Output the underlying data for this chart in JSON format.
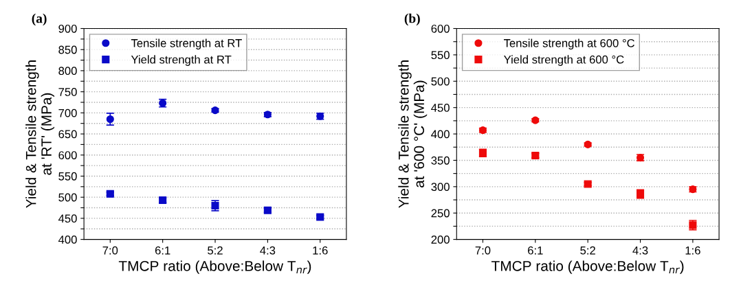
{
  "chart_data": [
    {
      "type": "scatter",
      "title": "(a)",
      "xlabel": "TMCP ratio (Above:Below T$_{nr}$)",
      "ylabel": "Yield & Tensile strength\nat 'RT' (MPa)",
      "categories": [
        "7:0",
        "6:1",
        "5:2",
        "4:3",
        "1:6"
      ],
      "series": [
        {
          "name": "Tensile strength at RT",
          "color": "#0a0ac8",
          "marker": "circle",
          "values": [
            685,
            723,
            706,
            696,
            692
          ],
          "errors": [
            14,
            9,
            4,
            5,
            7
          ]
        },
        {
          "name": "Yield strength at RT",
          "color": "#0a0ac8",
          "marker": "square",
          "values": [
            508,
            493,
            480,
            469,
            453
          ],
          "errors": [
            4,
            6,
            12,
            5,
            4
          ]
        }
      ],
      "ylim": [
        400,
        900
      ],
      "yticks": [
        400,
        {
          "value": 425,
          "label": null
        },
        450,
        {
          "value": 475,
          "label": null
        },
        500,
        {
          "value": 525,
          "label": null
        },
        550,
        {
          "value": 575,
          "label": null
        },
        600,
        {
          "value": 625,
          "label": null
        },
        650,
        {
          "value": 675,
          "label": null
        },
        700,
        {
          "value": 725,
          "label": null
        },
        750,
        {
          "value": 775,
          "label": null
        },
        800,
        {
          "value": 825,
          "label": null
        },
        850,
        {
          "value": 875,
          "label": null
        },
        900
      ],
      "grid": "y",
      "legend": "top left"
    },
    {
      "type": "scatter",
      "title": "(b)",
      "xlabel": "TMCP ratio (Above:Below T$_{nr}$)",
      "ylabel": "Yield & Tensile strength\nat '600 °C' (MPa)",
      "categories": [
        "7:0",
        "6:1",
        "5:2",
        "4:3",
        "1:6"
      ],
      "series": [
        {
          "name": "Tensile strength at 600 °C",
          "color": "#ee0a0a",
          "marker": "circle",
          "values": [
            407,
            426,
            380,
            355,
            295
          ],
          "errors": [
            4,
            3,
            3,
            6,
            5
          ]
        },
        {
          "name": "Yield strength at 600 °C",
          "color": "#ee0a0a",
          "marker": "square",
          "values": [
            364,
            359,
            305,
            286,
            227
          ],
          "errors": [
            7,
            4,
            3,
            8,
            9
          ]
        }
      ],
      "ylim": [
        200,
        600
      ],
      "yticks": [
        200,
        {
          "value": 225,
          "label": null
        },
        250,
        {
          "value": 275,
          "label": null
        },
        300,
        {
          "value": 325,
          "label": null
        },
        350,
        {
          "value": 375,
          "label": null
        },
        400,
        {
          "value": 425,
          "label": null
        },
        450,
        {
          "value": 475,
          "label": null
        },
        500,
        {
          "value": 525,
          "label": null
        },
        550,
        {
          "value": 575,
          "label": null
        },
        600
      ],
      "grid": "y",
      "legend": "top left"
    }
  ]
}
